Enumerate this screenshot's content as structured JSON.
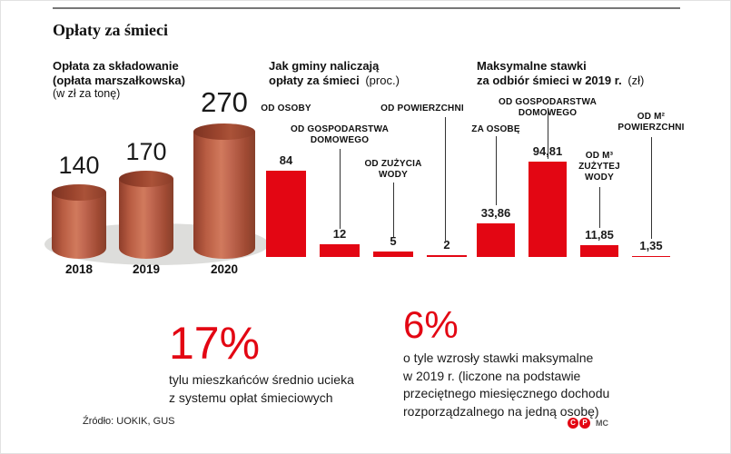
{
  "page": {
    "title": "Opłaty za śmieci",
    "source": "Źródło: UOKIK, GUS",
    "credit": "MC",
    "logo_letters": [
      "C",
      "P"
    ]
  },
  "colors": {
    "accent_red": "#e30613",
    "cylinder_body": "#bf5b41",
    "cylinder_top": "#97452f",
    "shadow_gray": "#dddddb",
    "text": "#1a1a1a"
  },
  "chart_data": [
    {
      "type": "bar",
      "variant": "3d-cylinder",
      "title": "Opłata za składowanie (opłata marszałkowska)",
      "title_bold_lines": [
        "Opłata za składowanie",
        "(opłata marszałkowska)"
      ],
      "subtitle": "(w zł za tonę)",
      "unit": "zł za tonę",
      "categories": [
        "2018",
        "2019",
        "2020"
      ],
      "values": [
        140,
        170,
        270
      ],
      "value_labels": [
        "140",
        "170",
        "270"
      ],
      "legend": "none",
      "grid": false
    },
    {
      "type": "bar",
      "title": "Jak gminy naliczają opłaty za śmieci (proc.)",
      "title_bold_lines": [
        "Jak gminy naliczają",
        "opłaty za śmieci"
      ],
      "subtitle": "(proc.)",
      "unit": "%",
      "categories": [
        "OD OSOBY",
        "OD GOSPODARSTWA DOMOWEGO",
        "OD ZUŻYCIA WODY",
        "OD POWIERZCHNI"
      ],
      "values": [
        84,
        12,
        5,
        2
      ],
      "value_labels": [
        "84",
        "12",
        "5",
        "2"
      ],
      "legend": "none",
      "grid": false
    },
    {
      "type": "bar",
      "title": "Maksymalne stawki za odbiór śmieci w 2019 r. (zł)",
      "title_bold_lines": [
        "Maksymalne stawki",
        "za odbiór śmieci w 2019 r."
      ],
      "subtitle": "(zł)",
      "unit": "zł",
      "categories": [
        "ZA OSOBĘ",
        "OD GOSPODARSTWA DOMOWEGO",
        "OD M³ ZUŻYTEJ WODY",
        "OD M² POWIERZCHNI"
      ],
      "values": [
        33.86,
        94.81,
        11.85,
        1.35
      ],
      "value_labels": [
        "33,86",
        "94,81",
        "11,85",
        "1,35"
      ],
      "legend": "none",
      "grid": false
    }
  ],
  "highlights": [
    {
      "value": "17%",
      "lines": [
        "tylu mieszkańców średnio ucieka",
        "z systemu opłat śmieciowych"
      ]
    },
    {
      "value": "6%",
      "lines": [
        "o tyle wzrosły stawki maksymalne",
        "w 2019 r. (liczone na podstawie",
        "przeciętnego miesięcznego dochodu",
        "rozporządzalnego na jedną osobę)"
      ]
    }
  ]
}
